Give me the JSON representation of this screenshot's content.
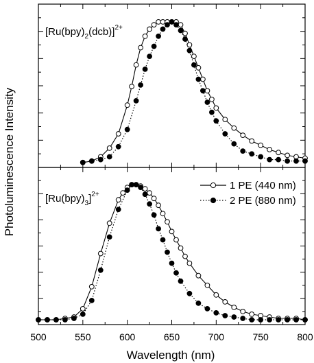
{
  "chart_data": {
    "type": "line",
    "xlabel": "Wavelength (nm)",
    "ylabel": "Photoluminescence Intensity",
    "xlim": [
      500,
      800
    ],
    "xticks": [
      500,
      550,
      600,
      650,
      700,
      750,
      800
    ],
    "xtick_labels": [
      "500",
      "550",
      "600",
      "650",
      "700",
      "750",
      "800"
    ],
    "legend": {
      "placement": "right, lower panel",
      "entries": [
        "1 PE (440 nm)",
        "2 PE (880 nm)"
      ]
    },
    "panels": [
      {
        "label": {
          "prefix": "[Ru(bpy)",
          "sub": "2",
          "middle": "(dcb)]",
          "sup": "2+"
        },
        "ylim": [
          0,
          1.1
        ],
        "series": [
          {
            "name": "1 PE (440 nm)",
            "marker": "open-circle",
            "line": "solid",
            "x": [
              550,
              560,
              570,
              580,
              590,
              600,
              605,
              610,
              615,
              620,
              625,
              630,
              635,
              640,
              645,
              650,
              655,
              660,
              665,
              670,
              675,
              680,
              685,
              690,
              695,
              700,
              710,
              720,
              730,
              740,
              750,
              760,
              770,
              780,
              790,
              800
            ],
            "y": [
              0.02,
              0.03,
              0.06,
              0.12,
              0.22,
              0.42,
              0.55,
              0.7,
              0.82,
              0.9,
              0.95,
              0.98,
              1.0,
              1.0,
              1.0,
              1.0,
              1.0,
              0.98,
              0.92,
              0.84,
              0.76,
              0.68,
              0.6,
              0.52,
              0.46,
              0.4,
              0.32,
              0.26,
              0.21,
              0.17,
              0.14,
              0.11,
              0.09,
              0.07,
              0.06,
              0.05
            ]
          },
          {
            "name": "2 PE (880 nm)",
            "marker": "filled-circle",
            "line": "dotted",
            "x": [
              550,
              560,
              570,
              580,
              590,
              600,
              610,
              615,
              620,
              625,
              630,
              635,
              640,
              645,
              650,
              655,
              660,
              665,
              670,
              675,
              680,
              685,
              690,
              695,
              700,
              710,
              720,
              730,
              740,
              750,
              760,
              770,
              780,
              790,
              800
            ],
            "y": [
              0.02,
              0.03,
              0.04,
              0.06,
              0.13,
              0.25,
              0.45,
              0.56,
              0.67,
              0.76,
              0.83,
              0.9,
              0.95,
              0.98,
              1.0,
              0.98,
              0.94,
              0.88,
              0.8,
              0.7,
              0.6,
              0.52,
              0.44,
              0.37,
              0.31,
              0.22,
              0.15,
              0.1,
              0.08,
              0.06,
              0.04,
              0.04,
              0.03,
              0.03,
              0.03
            ]
          }
        ]
      },
      {
        "label": {
          "prefix": "[Ru(bpy)",
          "sub": "3",
          "middle": "]",
          "sup": "2+"
        },
        "ylim": [
          0,
          1.1
        ],
        "series": [
          {
            "name": "1 PE (440 nm)",
            "marker": "open-circle",
            "line": "solid",
            "x": [
              500,
              510,
              520,
              530,
              540,
              550,
              560,
              570,
              580,
              590,
              595,
              600,
              605,
              610,
              615,
              620,
              625,
              630,
              635,
              640,
              645,
              650,
              655,
              660,
              665,
              670,
              680,
              690,
              700,
              710,
              720,
              730,
              740,
              750,
              760,
              770,
              780,
              790,
              800
            ],
            "y": [
              0.02,
              0.02,
              0.02,
              0.03,
              0.04,
              0.1,
              0.26,
              0.5,
              0.72,
              0.89,
              0.94,
              0.98,
              1.0,
              1.0,
              0.99,
              0.97,
              0.94,
              0.9,
              0.85,
              0.79,
              0.73,
              0.66,
              0.6,
              0.54,
              0.48,
              0.43,
              0.34,
              0.27,
              0.2,
              0.15,
              0.11,
              0.08,
              0.06,
              0.05,
              0.04,
              0.03,
              0.03,
              0.03,
              0.02
            ]
          },
          {
            "name": "2 PE (880 nm)",
            "marker": "filled-circle",
            "line": "dotted",
            "x": [
              500,
              510,
              520,
              530,
              540,
              550,
              560,
              570,
              580,
              590,
              600,
              605,
              610,
              615,
              620,
              625,
              630,
              635,
              640,
              645,
              650,
              655,
              660,
              670,
              680,
              690,
              700,
              710,
              720,
              730,
              740,
              750,
              760,
              770,
              780,
              790,
              800
            ],
            "y": [
              0.02,
              0.02,
              0.02,
              0.02,
              0.03,
              0.06,
              0.16,
              0.38,
              0.62,
              0.82,
              0.96,
              1.0,
              1.0,
              0.98,
              0.93,
              0.86,
              0.78,
              0.68,
              0.6,
              0.51,
              0.43,
              0.36,
              0.3,
              0.21,
              0.14,
              0.1,
              0.07,
              0.05,
              0.04,
              0.03,
              0.02,
              0.02,
              0.02,
              0.02,
              0.02,
              0.02,
              0.02
            ]
          }
        ]
      }
    ]
  }
}
